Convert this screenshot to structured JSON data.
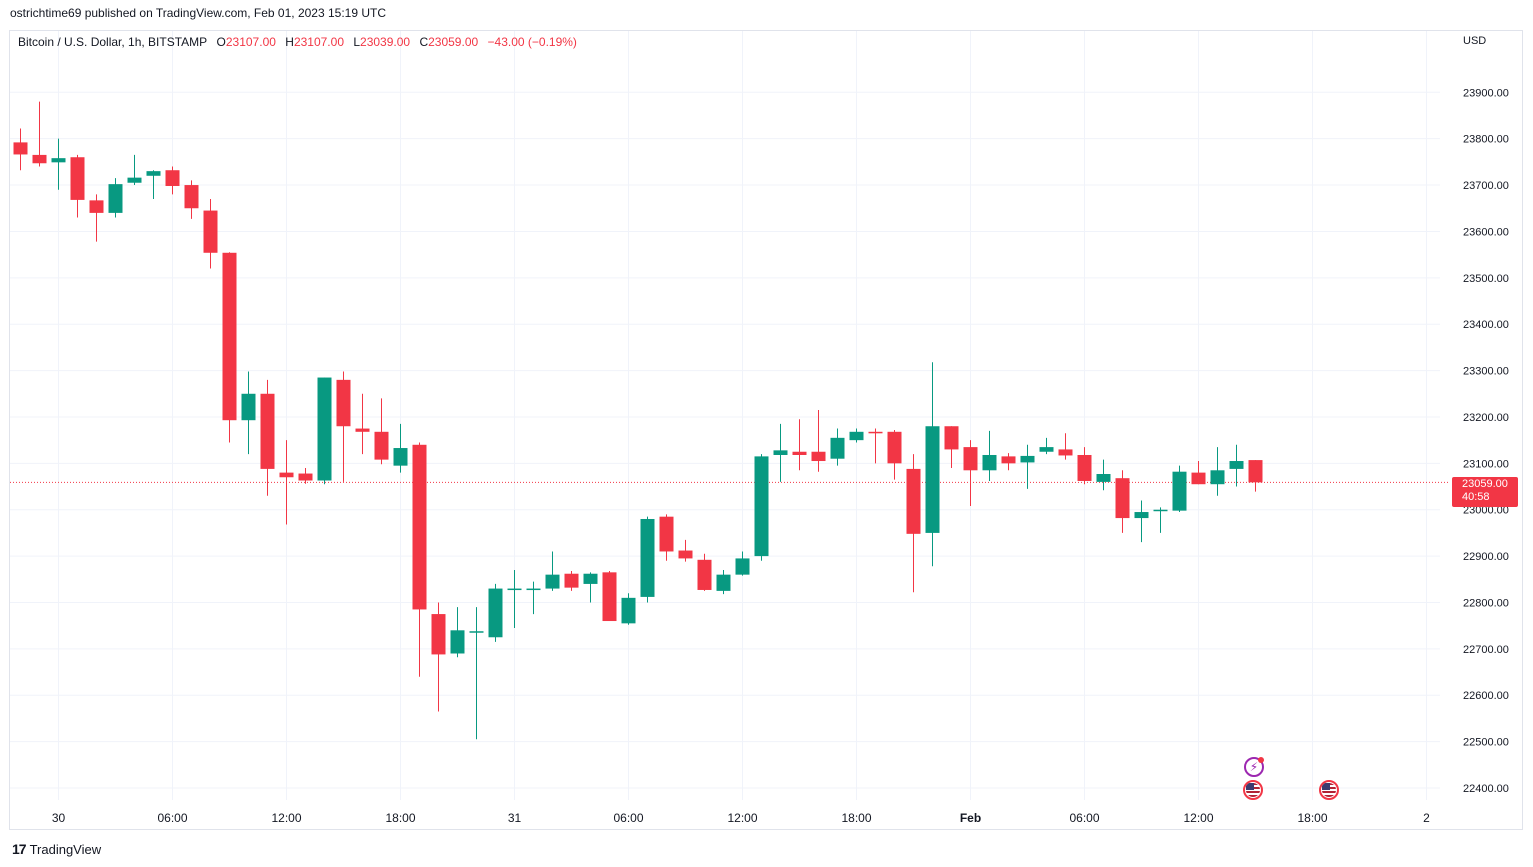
{
  "publisher": "ostrichtime69 published on TradingView.com, Feb 01, 2023 15:19 UTC",
  "legend": {
    "symbol": "Bitcoin / U.S. Dollar, 1h, BITSTAMP",
    "open_label": "O",
    "open": "23107.00",
    "high_label": "H",
    "high": "23107.00",
    "low_label": "L",
    "low": "23039.00",
    "close_label": "C",
    "close": "23059.00",
    "change": "−43.00 (−0.19%)"
  },
  "currency": "USD",
  "price_tag": {
    "price": "23059.00",
    "countdown": "40:58"
  },
  "brand": {
    "logo": "17",
    "name": "TradingView"
  },
  "icons": {
    "lightning": "lightning-event-icon",
    "flag": "us-flag-event-icon"
  },
  "colors": {
    "up": "#089981",
    "down": "#f23645",
    "grid": "#f0f3fa",
    "axis_text": "#131722"
  },
  "chart_data": {
    "type": "candlestick",
    "interval": "1h",
    "y_ticks": [
      "22400.00",
      "22500.00",
      "22600.00",
      "22700.00",
      "22800.00",
      "22900.00",
      "23000.00",
      "23100.00",
      "23200.00",
      "23300.00",
      "23400.00",
      "23500.00",
      "23600.00",
      "23700.00",
      "23800.00",
      "23900.00"
    ],
    "x_ticks": [
      "30",
      "06:00",
      "12:00",
      "18:00",
      "31",
      "06:00",
      "12:00",
      "18:00",
      "Feb",
      "06:00",
      "12:00",
      "18:00",
      "2"
    ],
    "x_tick_bars": [
      2,
      8,
      14,
      20,
      26,
      32,
      38,
      44,
      50,
      56,
      62,
      68,
      74
    ],
    "last_price": 23059,
    "candles": [
      {
        "o": 23792,
        "h": 23822,
        "l": 23732,
        "c": 23766
      },
      {
        "o": 23765,
        "h": 23880,
        "l": 23740,
        "c": 23747
      },
      {
        "o": 23749,
        "h": 23800,
        "l": 23690,
        "c": 23758
      },
      {
        "o": 23760,
        "h": 23765,
        "l": 23630,
        "c": 23668
      },
      {
        "o": 23667,
        "h": 23680,
        "l": 23578,
        "c": 23640
      },
      {
        "o": 23640,
        "h": 23715,
        "l": 23630,
        "c": 23702
      },
      {
        "o": 23705,
        "h": 23765,
        "l": 23700,
        "c": 23716
      },
      {
        "o": 23720,
        "h": 23732,
        "l": 23670,
        "c": 23730
      },
      {
        "o": 23732,
        "h": 23740,
        "l": 23680,
        "c": 23698
      },
      {
        "o": 23700,
        "h": 23710,
        "l": 23627,
        "c": 23650
      },
      {
        "o": 23645,
        "h": 23670,
        "l": 23520,
        "c": 23554
      },
      {
        "o": 23554,
        "h": 23555,
        "l": 23145,
        "c": 23193
      },
      {
        "o": 23193,
        "h": 23298,
        "l": 23120,
        "c": 23250
      },
      {
        "o": 23250,
        "h": 23280,
        "l": 23030,
        "c": 23088
      },
      {
        "o": 23080,
        "h": 23150,
        "l": 22968,
        "c": 23070
      },
      {
        "o": 23078,
        "h": 23090,
        "l": 23056,
        "c": 23063
      },
      {
        "o": 23063,
        "h": 23285,
        "l": 23055,
        "c": 23285
      },
      {
        "o": 23280,
        "h": 23298,
        "l": 23060,
        "c": 23180
      },
      {
        "o": 23175,
        "h": 23250,
        "l": 23120,
        "c": 23168
      },
      {
        "o": 23168,
        "h": 23240,
        "l": 23098,
        "c": 23108
      },
      {
        "o": 23095,
        "h": 23185,
        "l": 23080,
        "c": 23133
      },
      {
        "o": 23140,
        "h": 23145,
        "l": 22640,
        "c": 22785
      },
      {
        "o": 22775,
        "h": 22800,
        "l": 22565,
        "c": 22688
      },
      {
        "o": 22690,
        "h": 22790,
        "l": 22682,
        "c": 22740
      },
      {
        "o": 22738,
        "h": 22790,
        "l": 22505,
        "c": 22738
      },
      {
        "o": 22725,
        "h": 22840,
        "l": 22715,
        "c": 22830
      },
      {
        "o": 22828,
        "h": 22870,
        "l": 22745,
        "c": 22830
      },
      {
        "o": 22830,
        "h": 22845,
        "l": 22775,
        "c": 22830
      },
      {
        "o": 22830,
        "h": 22910,
        "l": 22825,
        "c": 22860
      },
      {
        "o": 22862,
        "h": 22868,
        "l": 22825,
        "c": 22832
      },
      {
        "o": 22840,
        "h": 22865,
        "l": 22800,
        "c": 22862
      },
      {
        "o": 22865,
        "h": 22868,
        "l": 22760,
        "c": 22760
      },
      {
        "o": 22755,
        "h": 22820,
        "l": 22752,
        "c": 22810
      },
      {
        "o": 22812,
        "h": 22985,
        "l": 22800,
        "c": 22980
      },
      {
        "o": 22985,
        "h": 22990,
        "l": 22890,
        "c": 22910
      },
      {
        "o": 22912,
        "h": 22935,
        "l": 22888,
        "c": 22895
      },
      {
        "o": 22892,
        "h": 22905,
        "l": 22825,
        "c": 22827
      },
      {
        "o": 22825,
        "h": 22870,
        "l": 22818,
        "c": 22860
      },
      {
        "o": 22860,
        "h": 22910,
        "l": 22858,
        "c": 22895
      },
      {
        "o": 22900,
        "h": 23120,
        "l": 22890,
        "c": 23115
      },
      {
        "o": 23118,
        "h": 23185,
        "l": 23060,
        "c": 23128
      },
      {
        "o": 23125,
        "h": 23195,
        "l": 23085,
        "c": 23118
      },
      {
        "o": 23125,
        "h": 23215,
        "l": 23082,
        "c": 23105
      },
      {
        "o": 23110,
        "h": 23175,
        "l": 23095,
        "c": 23155
      },
      {
        "o": 23150,
        "h": 23175,
        "l": 23145,
        "c": 23168
      },
      {
        "o": 23168,
        "h": 23175,
        "l": 23100,
        "c": 23165
      },
      {
        "o": 23168,
        "h": 23172,
        "l": 23065,
        "c": 23100
      },
      {
        "o": 23088,
        "h": 23120,
        "l": 22822,
        "c": 22948
      },
      {
        "o": 22950,
        "h": 23318,
        "l": 22878,
        "c": 23180
      },
      {
        "o": 23180,
        "h": 23180,
        "l": 23090,
        "c": 23130
      },
      {
        "o": 23135,
        "h": 23150,
        "l": 23008,
        "c": 23085
      },
      {
        "o": 23085,
        "h": 23170,
        "l": 23062,
        "c": 23118
      },
      {
        "o": 23115,
        "h": 23122,
        "l": 23085,
        "c": 23100
      },
      {
        "o": 23102,
        "h": 23140,
        "l": 23045,
        "c": 23116
      },
      {
        "o": 23125,
        "h": 23155,
        "l": 23120,
        "c": 23135
      },
      {
        "o": 23130,
        "h": 23165,
        "l": 23108,
        "c": 23117
      },
      {
        "o": 23118,
        "h": 23135,
        "l": 23055,
        "c": 23062
      },
      {
        "o": 23060,
        "h": 23108,
        "l": 23042,
        "c": 23077
      },
      {
        "o": 23068,
        "h": 23085,
        "l": 22950,
        "c": 22982
      },
      {
        "o": 22982,
        "h": 23020,
        "l": 22930,
        "c": 22995
      },
      {
        "o": 22998,
        "h": 23005,
        "l": 22950,
        "c": 23000
      },
      {
        "o": 22998,
        "h": 23095,
        "l": 22995,
        "c": 23082
      },
      {
        "o": 23080,
        "h": 23105,
        "l": 23055,
        "c": 23055
      },
      {
        "o": 23055,
        "h": 23135,
        "l": 23030,
        "c": 23085
      },
      {
        "o": 23088,
        "h": 23140,
        "l": 23050,
        "c": 23105
      },
      {
        "o": 23107,
        "h": 23107,
        "l": 23039,
        "c": 23059
      }
    ]
  }
}
